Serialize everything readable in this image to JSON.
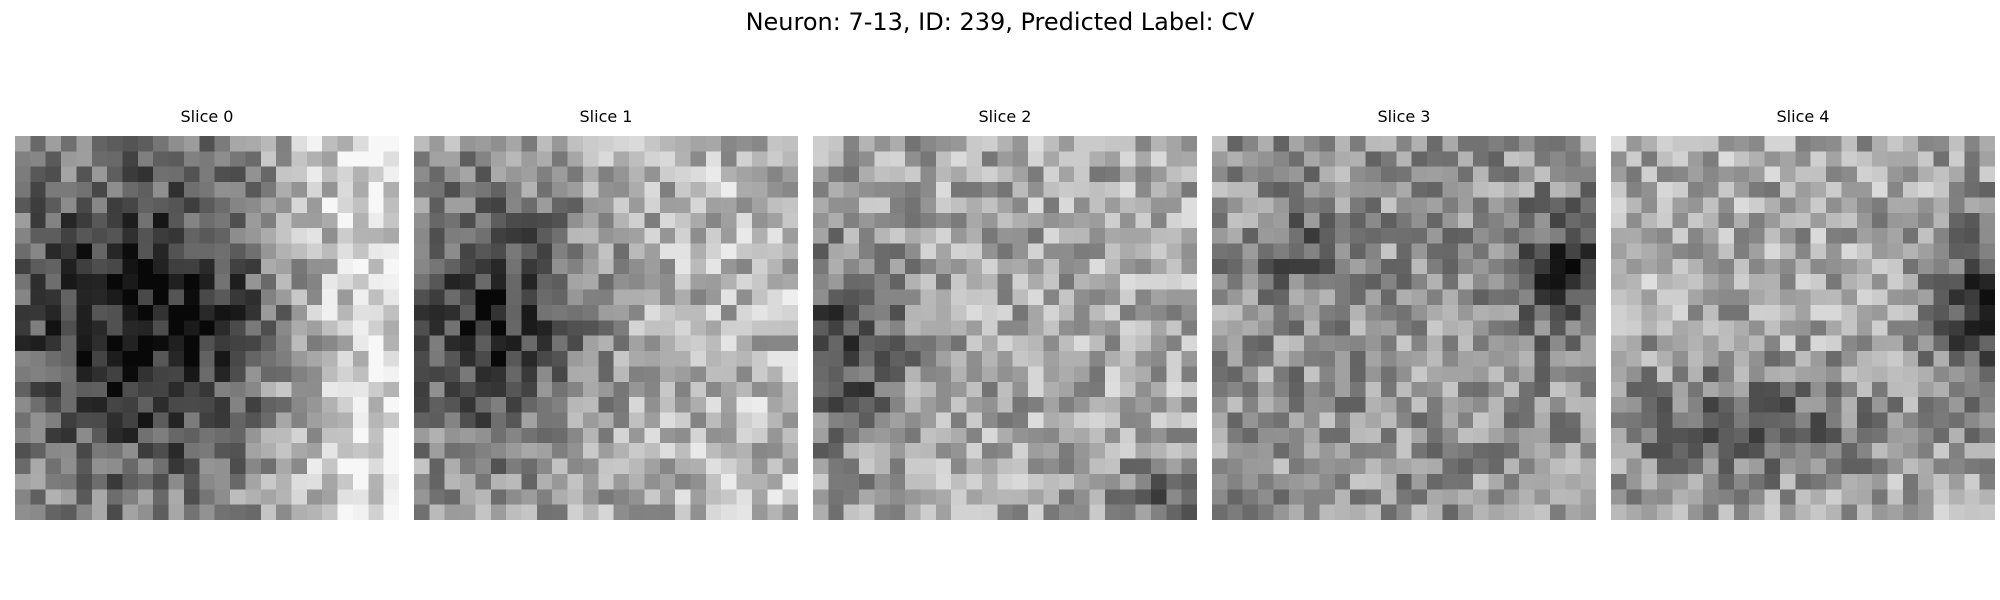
{
  "figure": {
    "title": "Neuron: 7-13, ID: 239, Predicted Label: CV",
    "colormap": "gray",
    "grid_size": 25
  },
  "panels": [
    {
      "title": "Slice 0",
      "description": "dark rounded blob occupying left and center; brighter textured region on right side"
    },
    {
      "title": "Slice 1",
      "description": "dark region on left side; bright noisy texture on right and top"
    },
    {
      "title": "Slice 2",
      "description": "mostly light gray noisy texture with a darker patch on the left edge and dark lower-right corner"
    },
    {
      "title": "Slice 3",
      "description": "evenly noisy mid-gray texture with a dark patch at upper right"
    },
    {
      "title": "Slice 4",
      "description": "light gray noisy texture with darker band at bottom-left and dark region at right edge"
    }
  ]
}
